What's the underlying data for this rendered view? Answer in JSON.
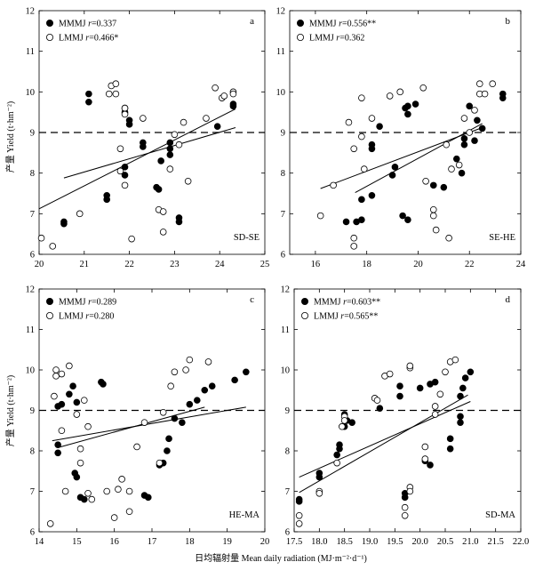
{
  "figure": {
    "ylabel": "产量 Yield (t·hm⁻²)",
    "xlabel": "日均辐射量 Mean daily radiation (MJ·m⁻²·d⁻¹)"
  },
  "chart_data": [
    {
      "type": "scatter",
      "panel": "a",
      "region": "SD-SE",
      "xlim": [
        20,
        25
      ],
      "ylim": [
        6,
        12
      ],
      "xticks": [
        20,
        21,
        22,
        23,
        24,
        25
      ],
      "yticks": [
        6,
        7,
        8,
        9,
        10,
        11,
        12
      ],
      "reference_y": 9,
      "series": [
        {
          "name": "MMMJ",
          "r_label": "r",
          "r_value": "=0.337",
          "marker": "filled",
          "points": [
            [
              20.55,
              6.8
            ],
            [
              20.55,
              6.75
            ],
            [
              21.1,
              9.95
            ],
            [
              21.1,
              9.75
            ],
            [
              21.5,
              7.45
            ],
            [
              21.5,
              7.35
            ],
            [
              21.9,
              8.15
            ],
            [
              21.9,
              7.95
            ],
            [
              21.9,
              9.6
            ],
            [
              21.9,
              9.5
            ],
            [
              22.0,
              9.3
            ],
            [
              22.0,
              9.2
            ],
            [
              22.3,
              8.75
            ],
            [
              22.3,
              8.65
            ],
            [
              22.6,
              7.65
            ],
            [
              22.65,
              7.6
            ],
            [
              22.7,
              8.3
            ],
            [
              22.9,
              8.75
            ],
            [
              22.9,
              8.6
            ],
            [
              22.9,
              8.45
            ],
            [
              23.1,
              6.9
            ],
            [
              23.1,
              6.8
            ],
            [
              23.95,
              9.15
            ],
            [
              24.3,
              9.7
            ],
            [
              24.3,
              9.65
            ]
          ],
          "fit": [
            [
              20.0,
              7.12
            ],
            [
              24.35,
              9.58
            ]
          ]
        },
        {
          "name": "LMMJ",
          "r_label": "r",
          "r_value": "=0.466*",
          "marker": "open",
          "points": [
            [
              20.05,
              6.4
            ],
            [
              20.3,
              6.2
            ],
            [
              20.9,
              7.0
            ],
            [
              21.55,
              9.95
            ],
            [
              21.6,
              10.15
            ],
            [
              21.7,
              10.2
            ],
            [
              21.7,
              9.95
            ],
            [
              21.8,
              8.6
            ],
            [
              21.8,
              8.05
            ],
            [
              21.9,
              9.6
            ],
            [
              21.9,
              9.45
            ],
            [
              21.9,
              7.7
            ],
            [
              22.05,
              6.38
            ],
            [
              22.3,
              9.35
            ],
            [
              22.65,
              7.1
            ],
            [
              22.75,
              7.05
            ],
            [
              22.75,
              6.55
            ],
            [
              22.9,
              8.1
            ],
            [
              23.0,
              8.95
            ],
            [
              23.1,
              8.7
            ],
            [
              23.2,
              9.25
            ],
            [
              23.3,
              7.8
            ],
            [
              23.7,
              9.35
            ],
            [
              23.9,
              10.1
            ],
            [
              24.05,
              9.85
            ],
            [
              24.1,
              9.9
            ],
            [
              24.3,
              10.0
            ],
            [
              24.3,
              9.95
            ]
          ],
          "fit": [
            [
              20.55,
              7.88
            ],
            [
              24.35,
              9.12
            ]
          ]
        }
      ]
    },
    {
      "type": "scatter",
      "panel": "b",
      "region": "SE-HE",
      "xlim": [
        15,
        24
      ],
      "ylim": [
        6,
        12
      ],
      "xticks": [
        16,
        18,
        20,
        22,
        24
      ],
      "yticks": [
        6,
        7,
        8,
        9,
        10,
        11,
        12
      ],
      "reference_y": 9,
      "series": [
        {
          "name": "MMMJ",
          "r_label": "r",
          "r_value": "=0.556**",
          "marker": "filled",
          "points": [
            [
              17.2,
              6.8
            ],
            [
              17.6,
              6.8
            ],
            [
              17.8,
              6.85
            ],
            [
              17.8,
              7.35
            ],
            [
              18.2,
              7.45
            ],
            [
              18.2,
              8.7
            ],
            [
              18.2,
              8.6
            ],
            [
              18.5,
              9.15
            ],
            [
              19.0,
              7.95
            ],
            [
              19.1,
              8.15
            ],
            [
              19.4,
              6.95
            ],
            [
              19.6,
              6.85
            ],
            [
              19.5,
              9.6
            ],
            [
              19.6,
              9.45
            ],
            [
              19.6,
              9.65
            ],
            [
              19.9,
              9.7
            ],
            [
              20.6,
              7.7
            ],
            [
              21.0,
              7.65
            ],
            [
              21.5,
              8.35
            ],
            [
              21.7,
              8.0
            ],
            [
              21.8,
              8.7
            ],
            [
              21.8,
              8.85
            ],
            [
              22.0,
              9.65
            ],
            [
              22.2,
              8.8
            ],
            [
              22.3,
              9.3
            ],
            [
              22.5,
              9.1
            ],
            [
              23.3,
              9.85
            ],
            [
              23.3,
              9.95
            ]
          ],
          "fit": [
            [
              17.55,
              7.52
            ],
            [
              22.5,
              9.22
            ]
          ]
        },
        {
          "name": "LMMJ",
          "r_label": "r",
          "r_value": "=0.362",
          "marker": "open",
          "points": [
            [
              16.2,
              6.95
            ],
            [
              16.7,
              7.7
            ],
            [
              17.3,
              9.25
            ],
            [
              17.5,
              6.4
            ],
            [
              17.5,
              6.2
            ],
            [
              17.5,
              8.6
            ],
            [
              17.8,
              9.85
            ],
            [
              17.8,
              8.9
            ],
            [
              17.9,
              8.1
            ],
            [
              18.2,
              9.35
            ],
            [
              18.9,
              9.9
            ],
            [
              19.3,
              10.0
            ],
            [
              20.2,
              10.1
            ],
            [
              20.3,
              7.8
            ],
            [
              20.6,
              7.1
            ],
            [
              20.6,
              6.95
            ],
            [
              20.7,
              6.6
            ],
            [
              21.1,
              8.7
            ],
            [
              21.2,
              6.4
            ],
            [
              21.3,
              8.1
            ],
            [
              21.6,
              8.2
            ],
            [
              21.8,
              9.35
            ],
            [
              22.0,
              9.0
            ],
            [
              22.2,
              9.55
            ],
            [
              22.4,
              9.95
            ],
            [
              22.4,
              10.2
            ],
            [
              22.6,
              9.95
            ],
            [
              22.9,
              10.2
            ]
          ],
          "fit": [
            [
              16.2,
              7.62
            ],
            [
              22.5,
              9.12
            ]
          ]
        }
      ]
    },
    {
      "type": "scatter",
      "panel": "c",
      "region": "HE-MA",
      "xlim": [
        14,
        20
      ],
      "ylim": [
        6,
        12
      ],
      "xticks": [
        14,
        15,
        16,
        17,
        18,
        19,
        20
      ],
      "yticks": [
        6,
        7,
        8,
        9,
        10,
        11,
        12
      ],
      "reference_y": 9,
      "series": [
        {
          "name": "MMMJ",
          "r_label": "r",
          "r_value": "=0.289",
          "marker": "filled",
          "points": [
            [
              14.5,
              9.1
            ],
            [
              14.5,
              8.15
            ],
            [
              14.5,
              7.95
            ],
            [
              14.6,
              9.15
            ],
            [
              14.8,
              9.4
            ],
            [
              14.9,
              9.6
            ],
            [
              14.95,
              7.45
            ],
            [
              15.0,
              9.2
            ],
            [
              15.0,
              7.35
            ],
            [
              15.1,
              6.85
            ],
            [
              15.2,
              6.8
            ],
            [
              15.65,
              9.7
            ],
            [
              15.7,
              9.65
            ],
            [
              16.8,
              6.9
            ],
            [
              16.9,
              6.85
            ],
            [
              17.2,
              7.65
            ],
            [
              17.3,
              7.7
            ],
            [
              17.4,
              8.0
            ],
            [
              17.45,
              8.3
            ],
            [
              17.6,
              8.8
            ],
            [
              17.8,
              8.7
            ],
            [
              18.0,
              9.15
            ],
            [
              18.2,
              9.25
            ],
            [
              18.4,
              9.5
            ],
            [
              18.6,
              9.6
            ],
            [
              19.2,
              9.75
            ],
            [
              19.5,
              9.95
            ]
          ],
          "fit": [
            [
              14.5,
              8.08
            ],
            [
              18.4,
              9.08
            ]
          ]
        },
        {
          "name": "LMMJ",
          "r_label": "r",
          "r_value": "=0.280",
          "marker": "open",
          "points": [
            [
              14.3,
              6.2
            ],
            [
              14.4,
              9.35
            ],
            [
              14.45,
              9.85
            ],
            [
              14.45,
              10.0
            ],
            [
              14.6,
              9.9
            ],
            [
              14.6,
              8.5
            ],
            [
              14.7,
              7.0
            ],
            [
              14.8,
              10.1
            ],
            [
              15.0,
              8.9
            ],
            [
              15.1,
              8.05
            ],
            [
              15.1,
              7.7
            ],
            [
              15.2,
              9.25
            ],
            [
              15.3,
              8.6
            ],
            [
              15.3,
              6.95
            ],
            [
              15.4,
              6.8
            ],
            [
              15.8,
              7.0
            ],
            [
              16.0,
              6.35
            ],
            [
              16.1,
              7.05
            ],
            [
              16.2,
              7.3
            ],
            [
              16.4,
              6.5
            ],
            [
              16.4,
              7.0
            ],
            [
              16.6,
              8.1
            ],
            [
              16.8,
              8.7
            ],
            [
              17.2,
              7.7
            ],
            [
              17.3,
              8.95
            ],
            [
              17.5,
              9.6
            ],
            [
              17.6,
              9.95
            ],
            [
              17.9,
              10.0
            ],
            [
              18.0,
              10.25
            ],
            [
              18.5,
              10.2
            ]
          ],
          "fit": [
            [
              14.35,
              8.25
            ],
            [
              19.5,
              9.08
            ]
          ]
        }
      ]
    },
    {
      "type": "scatter",
      "panel": "d",
      "region": "SD-MA",
      "xlim": [
        17.5,
        22
      ],
      "ylim": [
        6,
        12
      ],
      "xticks": [
        17.5,
        18.0,
        18.5,
        19.0,
        19.5,
        20.0,
        20.5,
        21.0,
        21.5,
        22.0
      ],
      "yticks": [
        6,
        7,
        8,
        9,
        10,
        11,
        12
      ],
      "reference_y": 9,
      "series": [
        {
          "name": "MMMJ",
          "r_label": "r",
          "r_value": "=0.603**",
          "marker": "filled",
          "points": [
            [
              17.6,
              6.8
            ],
            [
              17.6,
              6.75
            ],
            [
              18.0,
              7.45
            ],
            [
              18.0,
              7.35
            ],
            [
              18.35,
              7.9
            ],
            [
              18.4,
              8.15
            ],
            [
              18.4,
              8.05
            ],
            [
              18.5,
              8.9
            ],
            [
              18.5,
              8.6
            ],
            [
              18.55,
              8.75
            ],
            [
              18.65,
              8.7
            ],
            [
              19.2,
              9.05
            ],
            [
              19.6,
              9.35
            ],
            [
              19.6,
              9.6
            ],
            [
              19.7,
              6.95
            ],
            [
              19.7,
              6.85
            ],
            [
              20.0,
              9.55
            ],
            [
              20.1,
              7.75
            ],
            [
              20.2,
              7.65
            ],
            [
              20.2,
              9.65
            ],
            [
              20.3,
              9.7
            ],
            [
              20.6,
              8.3
            ],
            [
              20.6,
              8.05
            ],
            [
              20.8,
              8.7
            ],
            [
              20.8,
              8.85
            ],
            [
              20.8,
              9.35
            ],
            [
              20.85,
              9.55
            ],
            [
              20.9,
              9.8
            ],
            [
              21.0,
              9.95
            ]
          ],
          "fit": [
            [
              17.6,
              6.97
            ],
            [
              20.95,
              9.38
            ]
          ]
        },
        {
          "name": "LMMJ",
          "r_label": "r",
          "r_value": "=0.565**",
          "marker": "open",
          "points": [
            [
              17.6,
              6.4
            ],
            [
              17.6,
              6.2
            ],
            [
              18.0,
              7.0
            ],
            [
              18.0,
              6.95
            ],
            [
              18.35,
              7.7
            ],
            [
              18.45,
              8.6
            ],
            [
              18.5,
              8.85
            ],
            [
              18.5,
              8.75
            ],
            [
              19.1,
              9.3
            ],
            [
              19.15,
              9.25
            ],
            [
              19.3,
              9.85
            ],
            [
              19.4,
              9.9
            ],
            [
              19.7,
              6.6
            ],
            [
              19.7,
              6.4
            ],
            [
              19.8,
              7.1
            ],
            [
              19.8,
              7.0
            ],
            [
              19.8,
              10.05
            ],
            [
              19.8,
              10.1
            ],
            [
              20.1,
              8.1
            ],
            [
              20.1,
              7.8
            ],
            [
              20.3,
              9.1
            ],
            [
              20.3,
              8.9
            ],
            [
              20.4,
              9.4
            ],
            [
              20.5,
              9.95
            ],
            [
              20.6,
              10.2
            ],
            [
              20.7,
              10.25
            ]
          ],
          "fit": [
            [
              17.6,
              7.35
            ],
            [
              21.0,
              9.22
            ]
          ]
        }
      ]
    }
  ]
}
